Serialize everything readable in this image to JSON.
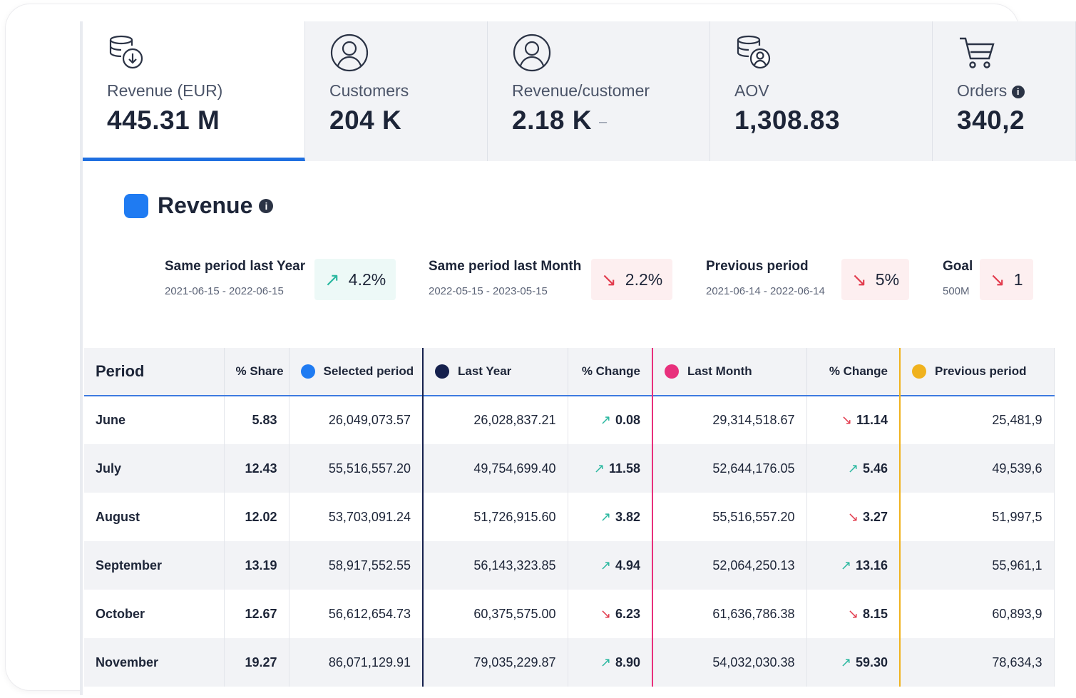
{
  "tabs": [
    {
      "label": "Revenue (EUR)",
      "value": "445.31 M",
      "icon": "database-download-icon",
      "active": true
    },
    {
      "label": "Customers",
      "value": "204 K",
      "icon": "user-icon",
      "active": false
    },
    {
      "label": "Revenue/customer",
      "value": "2.18 K",
      "icon": "user-icon",
      "active": false,
      "suffix": "–"
    },
    {
      "label": "AOV",
      "value": "1,308.83",
      "icon": "database-user-icon",
      "active": false
    },
    {
      "label": "Orders",
      "value": "340,2",
      "icon": "cart-icon",
      "active": false
    }
  ],
  "section": {
    "title": "Revenue",
    "info": "i",
    "color": "#1f7bf2"
  },
  "comparisons": [
    {
      "title": "Same period last Year",
      "date": "2021-06-15 - 2022-06-15",
      "direction": "up",
      "arrow": "↗",
      "value": "4.2%"
    },
    {
      "title": "Same period last Month",
      "date": "2022-05-15 - 2023-05-15",
      "direction": "down",
      "arrow": "↘",
      "value": "2.2%"
    },
    {
      "title": "Previous period",
      "date": "2021-06-14 - 2022-06-14",
      "direction": "down",
      "arrow": "↘",
      "value": "5%"
    },
    {
      "title": "Goal",
      "date": "500M",
      "direction": "down",
      "arrow": "↘",
      "value": "1"
    }
  ],
  "table": {
    "headers": {
      "period": "Period",
      "share": "% Share",
      "selected": "Selected period",
      "last_year": "Last Year",
      "chg1": "% Change",
      "last_month": "Last Month",
      "chg2": "% Change",
      "previous": "Previous period"
    },
    "series_colors": {
      "selected": "#1f7bf2",
      "last_year": "#15204d",
      "last_month": "#e8307c",
      "previous": "#f0b21e"
    },
    "rows": [
      {
        "month": "June",
        "share": "5.83",
        "selected": "26,049,073.57",
        "last_year": "26,028,837.21",
        "chg1_dir": "up",
        "chg1_arrow": "↗",
        "chg1": "0.08",
        "last_month": "29,314,518.67",
        "chg2_dir": "down",
        "chg2_arrow": "↘",
        "chg2": "11.14",
        "previous": "25,481,9"
      },
      {
        "month": "July",
        "share": "12.43",
        "selected": "55,516,557.20",
        "last_year": "49,754,699.40",
        "chg1_dir": "up",
        "chg1_arrow": "↗",
        "chg1": "11.58",
        "last_month": "52,644,176.05",
        "chg2_dir": "up",
        "chg2_arrow": "↗",
        "chg2": "5.46",
        "previous": "49,539,6"
      },
      {
        "month": "August",
        "share": "12.02",
        "selected": "53,703,091.24",
        "last_year": "51,726,915.60",
        "chg1_dir": "up",
        "chg1_arrow": "↗",
        "chg1": "3.82",
        "last_month": "55,516,557.20",
        "chg2_dir": "down",
        "chg2_arrow": "↘",
        "chg2": "3.27",
        "previous": "51,997,5"
      },
      {
        "month": "September",
        "share": "13.19",
        "selected": "58,917,552.55",
        "last_year": "56,143,323.85",
        "chg1_dir": "up",
        "chg1_arrow": "↗",
        "chg1": "4.94",
        "last_month": "52,064,250.13",
        "chg2_dir": "up",
        "chg2_arrow": "↗",
        "chg2": "13.16",
        "previous": "55,961,1"
      },
      {
        "month": "October",
        "share": "12.67",
        "selected": "56,612,654.73",
        "last_year": "60,375,575.00",
        "chg1_dir": "down",
        "chg1_arrow": "↘",
        "chg1": "6.23",
        "last_month": "61,636,786.38",
        "chg2_dir": "down",
        "chg2_arrow": "↘",
        "chg2": "8.15",
        "previous": "60,893,9"
      },
      {
        "month": "November",
        "share": "19.27",
        "selected": "86,071,129.91",
        "last_year": "79,035,229.87",
        "chg1_dir": "up",
        "chg1_arrow": "↗",
        "chg1": "8.90",
        "last_month": "54,032,030.38",
        "chg2_dir": "up",
        "chg2_arrow": "↗",
        "chg2": "59.30",
        "previous": "78,634,3"
      }
    ]
  }
}
